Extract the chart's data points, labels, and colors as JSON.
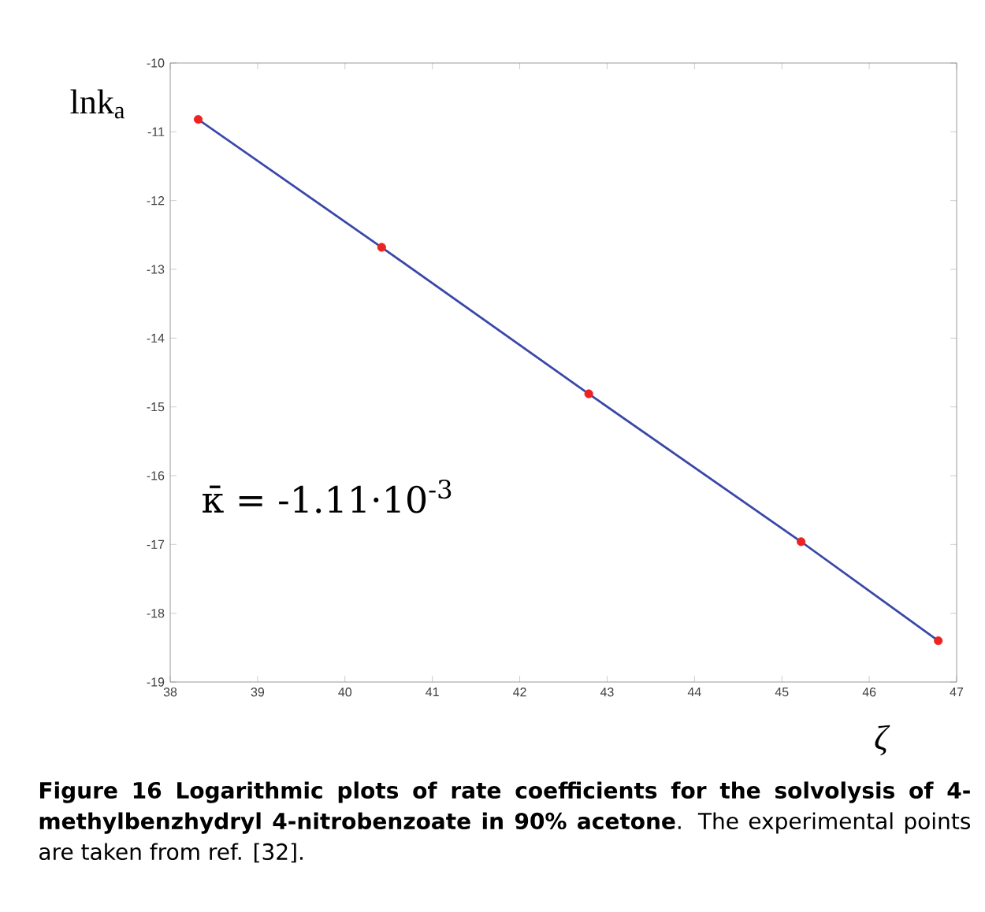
{
  "chart_data": {
    "type": "scatter",
    "xlabel": "ζ",
    "x": [
      38.32,
      40.42,
      42.79,
      45.22,
      46.79
    ],
    "series": [
      {
        "type": "line",
        "color": "#3a48a8",
        "values": [
          -10.82,
          -12.68,
          -14.81,
          -16.96,
          -18.4
        ],
        "marker": "none"
      },
      {
        "color": "#ee2222",
        "values": [
          -10.82,
          -12.68,
          -14.81,
          -16.96,
          -18.4
        ],
        "marker": "circle"
      }
    ],
    "xlim": [
      38,
      47
    ],
    "xticks": [
      38,
      39,
      40,
      41,
      42,
      43,
      44,
      45,
      46,
      47
    ],
    "ylim": [
      -19,
      -10
    ],
    "yticks": [
      -19,
      -18,
      -17,
      -16,
      -15,
      -14,
      -13,
      -12,
      -11,
      -10
    ],
    "annotations": [
      "lnk$_{a}$",
      "κ̄ = -1.11·10$^{-3}$",
      "**Figure 16 Logarithmic plots of rate coefficients for the solvolysis of 4-methylbenzhydryl 4-nitrobenzoate in 90% acetone**. The experimental points are taken from ref. [32]."
    ]
  }
}
